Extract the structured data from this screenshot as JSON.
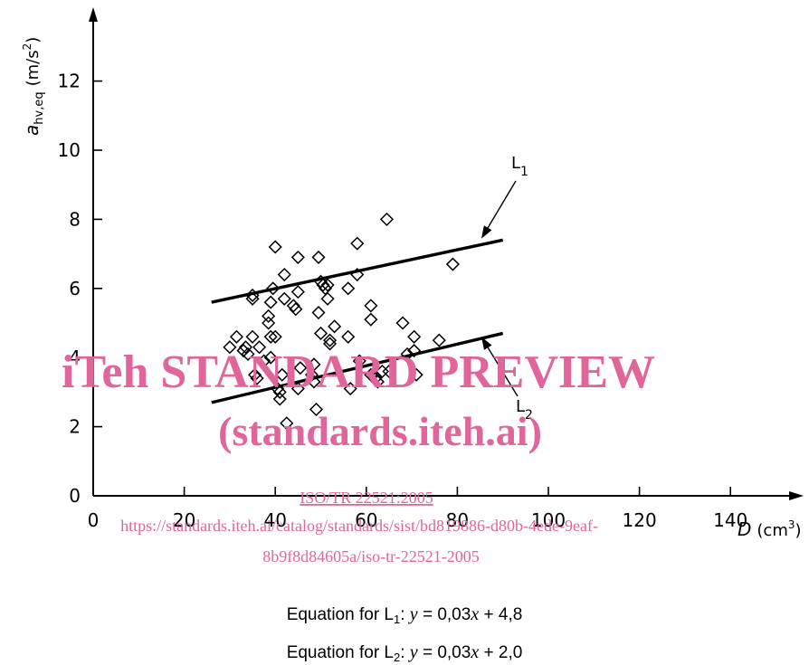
{
  "chart_data": {
    "type": "scatter",
    "title": "",
    "xlabel": {
      "symbol": "D",
      "unit": "(cm",
      "unit_sup": "3",
      "unit_close": ")"
    },
    "ylabel": {
      "symbol": "a",
      "subscript": "hv,eq",
      "unit": "(m/s",
      "unit_sup": "2",
      "unit_close": ")"
    },
    "xlim": [
      0,
      150
    ],
    "ylim": [
      0,
      14
    ],
    "x_ticks": [
      0,
      20,
      40,
      60,
      80,
      100,
      120,
      140
    ],
    "y_ticks": [
      0,
      2,
      4,
      6,
      8,
      10,
      12
    ],
    "marker": "diamond-open",
    "points": [
      [
        30,
        4.3
      ],
      [
        31.5,
        4.6
      ],
      [
        33,
        4.2
      ],
      [
        33.5,
        4.3
      ],
      [
        34,
        4.1
      ],
      [
        35,
        5.7
      ],
      [
        35,
        5.8
      ],
      [
        35,
        4.6
      ],
      [
        35.5,
        3.5
      ],
      [
        36,
        3.4
      ],
      [
        36.5,
        4.3
      ],
      [
        37.5,
        3.9
      ],
      [
        38.5,
        5.0
      ],
      [
        38.5,
        5.2
      ],
      [
        39,
        5.6
      ],
      [
        39,
        4.6
      ],
      [
        39,
        4.0
      ],
      [
        39.5,
        6.0
      ],
      [
        40,
        7.2
      ],
      [
        40,
        4.6
      ],
      [
        40.5,
        3.1
      ],
      [
        41,
        2.8
      ],
      [
        41,
        3.0
      ],
      [
        41.5,
        3.5
      ],
      [
        42,
        6.4
      ],
      [
        42,
        5.7
      ],
      [
        42.5,
        2.1
      ],
      [
        44,
        5.5
      ],
      [
        44.5,
        5.4
      ],
      [
        45,
        6.9
      ],
      [
        45,
        5.9
      ],
      [
        45.5,
        3.7
      ],
      [
        45,
        3.1
      ],
      [
        48,
        3.5
      ],
      [
        48.5,
        3.8
      ],
      [
        48.5,
        3.3
      ],
      [
        49,
        2.5
      ],
      [
        49.5,
        5.3
      ],
      [
        49.5,
        6.9
      ],
      [
        50,
        6.2
      ],
      [
        50,
        4.7
      ],
      [
        50.5,
        6.1
      ],
      [
        51,
        6.0
      ],
      [
        51.5,
        6.1
      ],
      [
        51.5,
        5.7
      ],
      [
        52,
        4.4
      ],
      [
        52,
        4.5
      ],
      [
        53,
        4.9
      ],
      [
        56,
        6.0
      ],
      [
        56,
        4.6
      ],
      [
        56.5,
        3.1
      ],
      [
        58,
        7.3
      ],
      [
        58,
        6.4
      ],
      [
        58.5,
        3.9
      ],
      [
        61,
        5.5
      ],
      [
        61,
        5.1
      ],
      [
        61,
        3.5
      ],
      [
        62,
        3.4
      ],
      [
        62.5,
        3.3
      ],
      [
        63.5,
        3.6
      ],
      [
        64.5,
        8.0
      ],
      [
        65,
        3.6
      ],
      [
        68,
        5.0
      ],
      [
        69,
        4.1
      ],
      [
        70.5,
        4.6
      ],
      [
        70.5,
        4.2
      ],
      [
        71,
        3.5
      ],
      [
        76,
        4.5
      ],
      [
        79,
        6.7
      ]
    ],
    "lines": [
      {
        "name": "L1",
        "label_main": "L",
        "label_sub": "1",
        "x": [
          26,
          90
        ],
        "y": [
          5.6,
          7.4
        ]
      },
      {
        "name": "L2",
        "label_main": "L",
        "label_sub": "2",
        "x": [
          26,
          90
        ],
        "y": [
          2.7,
          4.7
        ]
      }
    ],
    "equations": [
      {
        "prefix": "Equation for L",
        "sub": "1",
        "colon": ": ",
        "y": "y",
        "mid": " = 0,03",
        "x": "x",
        "tail": " + 4,8"
      },
      {
        "prefix": "Equation for L",
        "sub": "2",
        "colon": ": ",
        "y": "y",
        "mid": " = 0,03",
        "x": "x",
        "tail": " + 2,0"
      }
    ]
  },
  "watermark": {
    "line1": "iTeh STANDARD PREVIEW",
    "line2": "(standards.iteh.ai)",
    "doc_id": "ISO/TR 22521:2005",
    "url1": "https://standards.iteh.ai/catalog/standards/sist/bd819886-d80b-4ede-9eaf-",
    "url2": "8b9f8d84605a/iso-tr-22521-2005",
    "color": "#e0659a"
  }
}
